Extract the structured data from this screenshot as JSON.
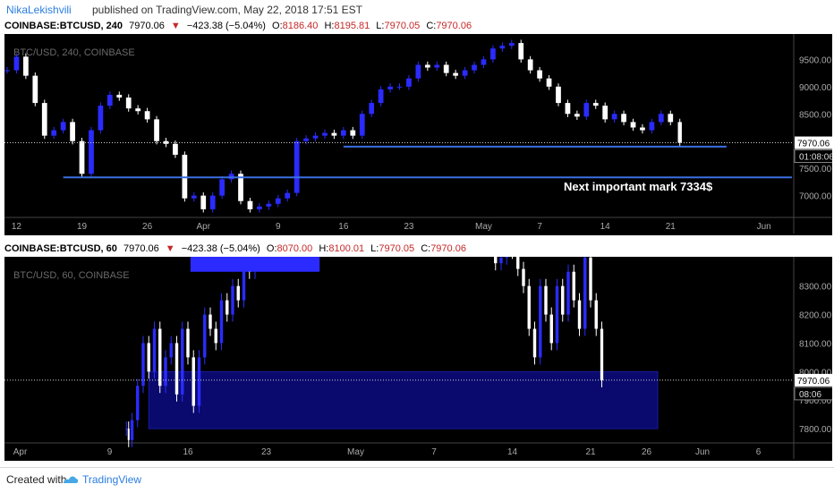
{
  "header": {
    "author": "NikaLekishvili",
    "published": "published on TradingView.com, May 22, 2018 17:51 EST"
  },
  "colors": {
    "panel_bg": "#000000",
    "candle_up": "#2b2bff",
    "candle_down": "#ffffff",
    "support_line": "#3b6fe0",
    "zone_fill": "#0a0a6e",
    "price_label_bg": "#ffffff",
    "legend_red": "#c62828"
  },
  "top_panel": {
    "legend": {
      "symbol": "COINBASE:BTCUSD, 240",
      "last": "7970.06",
      "arrow": "▼",
      "change": "−423.38 (−5.04%)",
      "o_label": "O:",
      "o": "8186.40",
      "h_label": "H:",
      "h": "8195.81",
      "l_label": "L:",
      "l": "7970.05",
      "c_label": "C:",
      "c": "7970.06"
    },
    "watermark": "BTC/USD, 240, COINBASE",
    "annotation": "Next important mark 7334$",
    "price_label": "7970.06",
    "countdown_label": "01:08:06",
    "y_ticks": [
      {
        "value": 9500,
        "label": "9500.00"
      },
      {
        "value": 9000,
        "label": "9000.00"
      },
      {
        "value": 8500,
        "label": "8500.00"
      },
      {
        "value": 7500,
        "label": "7500.00"
      },
      {
        "value": 7000,
        "label": "7000.00"
      }
    ],
    "x_ticks": [
      {
        "t": 12,
        "label": "12"
      },
      {
        "t": 19,
        "label": "19"
      },
      {
        "t": 26,
        "label": "26"
      },
      {
        "t": 32,
        "label": "Apr"
      },
      {
        "t": 40,
        "label": "9"
      },
      {
        "t": 47,
        "label": "16"
      },
      {
        "t": 54,
        "label": "23"
      },
      {
        "t": 62,
        "label": "May"
      },
      {
        "t": 68,
        "label": "7"
      },
      {
        "t": 75,
        "label": "14"
      },
      {
        "t": 82,
        "label": "21"
      },
      {
        "t": 92,
        "label": "Jun"
      }
    ]
  },
  "bottom_panel": {
    "legend": {
      "symbol": "COINBASE:BTCUSD, 60",
      "last": "7970.06",
      "arrow": "▼",
      "change": "−423.38 (−5.04%)",
      "o_label": "O:",
      "o": "8070.00",
      "h_label": "H:",
      "h": "8100.01",
      "l_label": "L:",
      "l": "7970.05",
      "c_label": "C:",
      "c": "7970.06"
    },
    "watermark": "BTC/USD, 60, COINBASE",
    "price_label": "7970.06",
    "countdown_label": "08:06",
    "y_ticks": [
      {
        "value": 8300,
        "label": "8300.00"
      },
      {
        "value": 8200,
        "label": "8200.00"
      },
      {
        "value": 8100,
        "label": "8100.00"
      },
      {
        "value": 8000,
        "label": "8000.00"
      },
      {
        "value": 7900,
        "label": "7900.00"
      },
      {
        "value": 7800,
        "label": "7800.00"
      }
    ],
    "x_ticks": [
      {
        "t": 1,
        "label": "Apr"
      },
      {
        "t": 9,
        "label": "9"
      },
      {
        "t": 16,
        "label": "16"
      },
      {
        "t": 23,
        "label": "23"
      },
      {
        "t": 31,
        "label": "May"
      },
      {
        "t": 38,
        "label": "7"
      },
      {
        "t": 45,
        "label": "14"
      },
      {
        "t": 52,
        "label": "21"
      },
      {
        "t": 57,
        "label": "26"
      },
      {
        "t": 62,
        "label": "Jun"
      },
      {
        "t": 67,
        "label": "6"
      }
    ]
  },
  "footer": {
    "created": "Created with",
    "brand": "TradingView"
  },
  "chart_data": [
    {
      "type": "line",
      "title": "BTC/USD, 240, COINBASE",
      "xlabel": "",
      "ylabel": "",
      "ylim": [
        6600,
        9900
      ],
      "x_unit": "day (Mar 2018 = day of month; Apr 1 = 32)",
      "xlim": [
        11,
        95
      ],
      "series": [
        {
          "name": "close",
          "x": [
            11,
            12,
            13,
            14,
            15,
            16,
            17,
            18,
            19,
            20,
            21,
            22,
            23,
            24,
            25,
            26,
            27,
            28,
            29,
            30,
            31,
            32,
            33,
            34,
            35,
            36,
            37,
            38,
            39,
            40,
            41,
            42,
            43,
            44,
            45,
            46,
            47,
            48,
            49,
            50,
            51,
            52,
            53,
            54,
            55,
            56,
            57,
            58,
            59,
            60,
            61,
            62,
            63,
            64,
            65,
            66,
            67,
            68,
            69,
            70,
            71,
            72,
            73,
            74,
            75,
            76,
            77,
            78,
            79,
            80,
            81,
            82,
            83
          ],
          "y": [
            9300,
            9550,
            9200,
            8700,
            8100,
            8200,
            8350,
            8000,
            7400,
            8200,
            8650,
            8850,
            8800,
            8600,
            8550,
            8400,
            8000,
            7950,
            7750,
            6950,
            7000,
            6750,
            7000,
            7300,
            7400,
            6900,
            6750,
            6800,
            6850,
            6950,
            7050,
            8000,
            8050,
            8100,
            8150,
            8100,
            8200,
            8100,
            8500,
            8700,
            8950,
            9000,
            9000,
            9150,
            9400,
            9350,
            9400,
            9250,
            9200,
            9300,
            9400,
            9500,
            9700,
            9750,
            9800,
            9500,
            9300,
            9150,
            9000,
            8700,
            8500,
            8450,
            8700,
            8650,
            8400,
            8500,
            8350,
            8250,
            8200,
            8350,
            8500,
            8350,
            7970
          ]
        }
      ],
      "annotations": [
        {
          "type": "hline",
          "y": 7900,
          "x_from": 47,
          "x_to": 88
        },
        {
          "type": "hline",
          "y": 7334,
          "x_from": 17,
          "x_to": 95
        },
        {
          "type": "text",
          "text": "Next important mark 7334$"
        }
      ]
    },
    {
      "type": "line",
      "title": "BTC/USD, 60, COINBASE",
      "xlabel": "",
      "ylabel": "",
      "ylim": [
        7750,
        8390
      ],
      "x_unit": "day (Apr 2018 = day of month; May 1 = 31)",
      "xlim": [
        0,
        70
      ],
      "series": [
        {
          "name": "close",
          "x": [
            10.5,
            10.7,
            11,
            11.5,
            12,
            12.5,
            13,
            13.5,
            14,
            14.5,
            15,
            15.5,
            16,
            16.5,
            17,
            17.5,
            18,
            18.5,
            19,
            19.5,
            20,
            20.5,
            21,
            21.5,
            22,
            43,
            43.5,
            44,
            44.5,
            45,
            45.5,
            46,
            46.5,
            47,
            47.5,
            48,
            48.5,
            49,
            49.5,
            50,
            50.5,
            51,
            51.5,
            52,
            52.5,
            53
          ],
          "y": [
            7800,
            7760,
            7830,
            7950,
            8100,
            8000,
            8150,
            7950,
            8050,
            8100,
            7920,
            8150,
            8050,
            7880,
            8050,
            8200,
            8150,
            8100,
            8250,
            8200,
            8300,
            8250,
            8400,
            8350,
            8450,
            8450,
            8380,
            8400,
            8450,
            8420,
            8360,
            8300,
            8150,
            8050,
            8300,
            8200,
            8100,
            8300,
            8200,
            8350,
            8250,
            8150,
            8400,
            8250,
            8150,
            7970
          ]
        }
      ],
      "annotations": [
        {
          "type": "zone",
          "y_from": 7800,
          "y_to": 8000,
          "x_from": 12.5,
          "x_to": 58
        }
      ]
    }
  ]
}
